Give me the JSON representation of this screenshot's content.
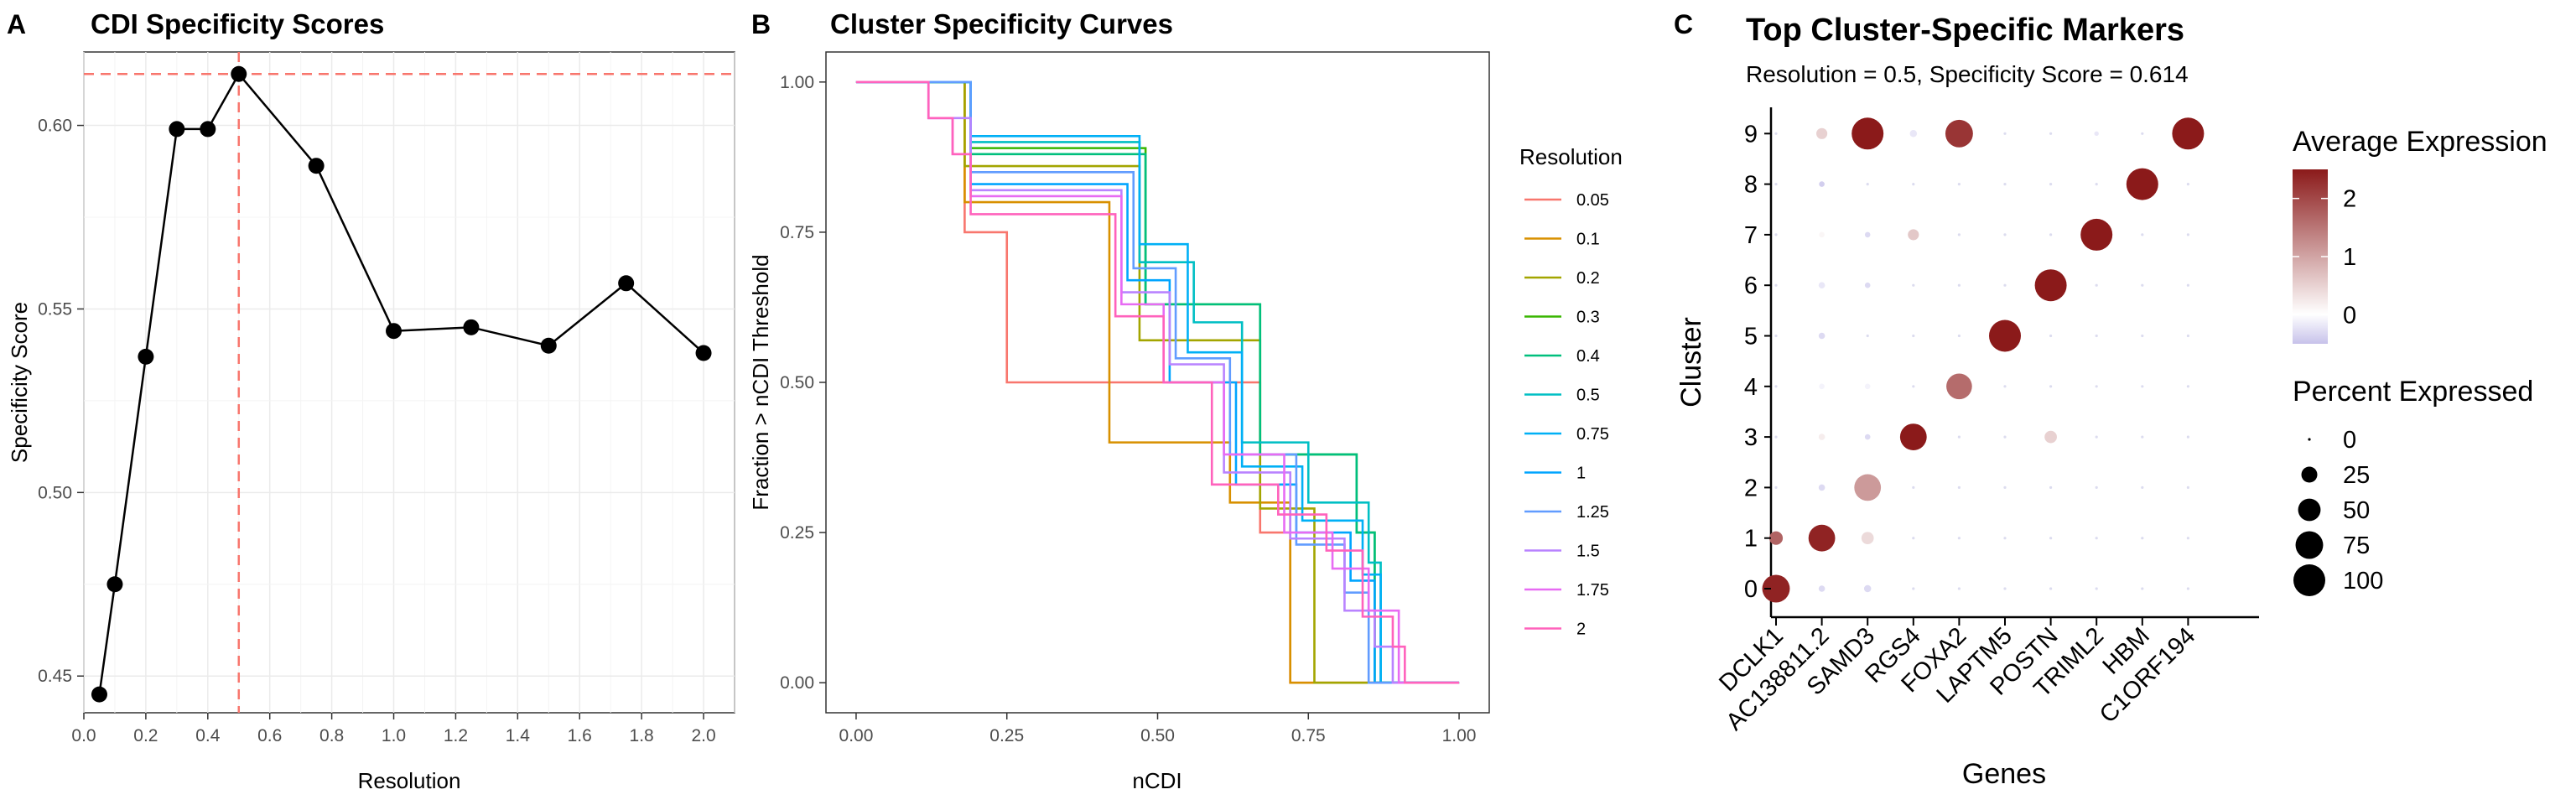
{
  "chart_data": [
    {
      "panel": "A",
      "type": "line",
      "title": "CDI Specificity Scores",
      "xlabel": "Resolution",
      "ylabel": "Specificity Score",
      "xlim": [
        -0.0,
        2.1
      ],
      "ylim": [
        0.44,
        0.62
      ],
      "xticks": [
        "0.0",
        "0.2",
        "0.4",
        "0.6",
        "0.8",
        "1.0",
        "1.2",
        "1.4",
        "1.6",
        "1.8",
        "2.0"
      ],
      "yticks": [
        "0.45",
        "0.50",
        "0.55",
        "0.60"
      ],
      "grid": true,
      "reference_lines": {
        "vertical": 0.5,
        "horizontal": 0.614,
        "color": "#f8766d",
        "style": "dashed"
      },
      "x": [
        0.05,
        0.1,
        0.2,
        0.3,
        0.4,
        0.5,
        0.75,
        1.0,
        1.25,
        1.5,
        1.75,
        2.0
      ],
      "y": [
        0.445,
        0.475,
        0.537,
        0.599,
        0.599,
        0.614,
        0.589,
        0.544,
        0.545,
        0.54,
        0.557,
        0.538
      ]
    },
    {
      "panel": "B",
      "type": "line",
      "title": "Cluster Specificity Curves",
      "xlabel": "nCDI",
      "ylabel": "Fraction > nCDI Threshold",
      "xlim": [
        -0.05,
        1.05
      ],
      "ylim": [
        -0.05,
        1.05
      ],
      "xticks": [
        "0.00",
        "0.25",
        "0.50",
        "0.75",
        "1.00"
      ],
      "yticks": [
        "0.00",
        "0.25",
        "0.50",
        "0.75",
        "1.00"
      ],
      "grid": false,
      "legend_title": "Resolution",
      "legend_position": "right",
      "series": [
        {
          "name": "0.05",
          "color": "#f8766d",
          "x": [
            0,
            0.13,
            0.18,
            0.25,
            0.65,
            0.67,
            0.69,
            0.72,
            1.0
          ],
          "y": [
            1,
            1,
            0.75,
            0.5,
            0.5,
            0.25,
            0.25,
            0,
            0
          ]
        },
        {
          "name": "0.1",
          "color": "#d89000",
          "x": [
            0,
            0.16,
            0.18,
            0.28,
            0.42,
            0.55,
            0.62,
            0.69,
            0.72,
            1.0
          ],
          "y": [
            1,
            1,
            0.8,
            0.8,
            0.4,
            0.4,
            0.3,
            0.3,
            0,
            0
          ]
        },
        {
          "name": "0.2",
          "color": "#a3a500",
          "x": [
            0,
            0.15,
            0.18,
            0.42,
            0.47,
            0.57,
            0.67,
            0.75,
            0.76,
            1.0
          ],
          "y": [
            1,
            1,
            0.86,
            0.86,
            0.57,
            0.57,
            0.29,
            0.29,
            0,
            0
          ]
        },
        {
          "name": "0.3",
          "color": "#39b600",
          "x": [
            0,
            0.16,
            0.19,
            0.45,
            0.48,
            0.6,
            0.67,
            0.78,
            0.83,
            0.86,
            1.0
          ],
          "y": [
            1,
            1,
            0.89,
            0.89,
            0.63,
            0.63,
            0.38,
            0.38,
            0.25,
            0,
            0
          ]
        },
        {
          "name": "0.4",
          "color": "#00bf7d",
          "x": [
            0,
            0.16,
            0.19,
            0.43,
            0.48,
            0.58,
            0.67,
            0.75,
            0.83,
            0.86,
            1.0
          ],
          "y": [
            1,
            1,
            0.88,
            0.88,
            0.63,
            0.63,
            0.38,
            0.38,
            0.25,
            0,
            0
          ]
        },
        {
          "name": "0.5",
          "color": "#00bfc4",
          "x": [
            0,
            0.17,
            0.19,
            0.43,
            0.47,
            0.56,
            0.64,
            0.75,
            0.85,
            0.87,
            1.0
          ],
          "y": [
            1,
            1,
            0.9,
            0.9,
            0.7,
            0.6,
            0.4,
            0.3,
            0.2,
            0,
            0
          ]
        },
        {
          "name": "0.75",
          "color": "#00b0f6",
          "x": [
            0,
            0.17,
            0.19,
            0.38,
            0.47,
            0.55,
            0.64,
            0.74,
            0.84,
            0.87,
            1.0
          ],
          "y": [
            1,
            1,
            0.91,
            0.91,
            0.73,
            0.55,
            0.36,
            0.27,
            0.18,
            0,
            0
          ]
        },
        {
          "name": "1",
          "color": "#00a5ff",
          "x": [
            0,
            0.16,
            0.19,
            0.37,
            0.45,
            0.52,
            0.63,
            0.73,
            0.82,
            0.86,
            1.0
          ],
          "y": [
            1,
            1,
            0.83,
            0.83,
            0.67,
            0.5,
            0.33,
            0.25,
            0.17,
            0,
            0
          ]
        },
        {
          "name": "1.25",
          "color": "#619cff",
          "x": [
            0,
            0.16,
            0.19,
            0.38,
            0.46,
            0.53,
            0.62,
            0.73,
            0.81,
            0.85,
            1.0
          ],
          "y": [
            1,
            1,
            0.85,
            0.85,
            0.69,
            0.54,
            0.38,
            0.23,
            0.15,
            0,
            0
          ]
        },
        {
          "name": "1.5",
          "color": "#b983ff",
          "x": [
            0,
            0.12,
            0.19,
            0.38,
            0.44,
            0.52,
            0.61,
            0.72,
            0.81,
            0.86,
            0.89,
            1.0
          ],
          "y": [
            1,
            0.94,
            0.82,
            0.82,
            0.65,
            0.53,
            0.35,
            0.24,
            0.12,
            0.06,
            0,
            0
          ]
        },
        {
          "name": "1.75",
          "color": "#e76bf3",
          "x": [
            0,
            0.12,
            0.16,
            0.19,
            0.36,
            0.44,
            0.51,
            0.61,
            0.71,
            0.79,
            0.85,
            0.9,
            1.0
          ],
          "y": [
            1,
            0.94,
            0.88,
            0.81,
            0.81,
            0.63,
            0.5,
            0.38,
            0.25,
            0.19,
            0.12,
            0,
            0
          ]
        },
        {
          "name": "2",
          "color": "#ff62bc",
          "x": [
            0,
            0.12,
            0.16,
            0.19,
            0.35,
            0.43,
            0.51,
            0.59,
            0.7,
            0.78,
            0.84,
            0.89,
            0.91,
            1.0
          ],
          "y": [
            1,
            0.94,
            0.88,
            0.78,
            0.78,
            0.61,
            0.5,
            0.33,
            0.28,
            0.22,
            0.11,
            0.06,
            0,
            0
          ]
        }
      ]
    },
    {
      "panel": "C",
      "type": "scatter",
      "title": "Top Cluster-Specific Markers",
      "subtitle": "Resolution = 0.5, Specificity Score = 0.614",
      "xlabel": "Genes",
      "ylabel": "Cluster",
      "genes": [
        "DCLK1",
        "AC138811.2",
        "SAMD3",
        "RGS4",
        "FOXA2",
        "LAPTM5",
        "POSTN",
        "TRIML2",
        "HBM",
        "C1ORF194"
      ],
      "clusters": [
        "0",
        "1",
        "2",
        "3",
        "4",
        "5",
        "6",
        "7",
        "8",
        "9"
      ],
      "color_legend_title": "Average Expression",
      "color_scale": {
        "low": "#c7c2ea",
        "mid": "#ffffff",
        "high": "#8b1a1a",
        "min": -0.5,
        "max": 2.5
      },
      "color_ticks": [
        "2",
        "1",
        "0"
      ],
      "size_legend_title": "Percent Expressed",
      "size_ticks": [
        "0",
        "25",
        "50",
        "75",
        "100"
      ],
      "points": [
        {
          "gene": 0,
          "cluster": 0,
          "pct": 75,
          "exp": 2.4
        },
        {
          "gene": 0,
          "cluster": 1,
          "pct": 18,
          "exp": 1.7
        },
        {
          "gene": 1,
          "cluster": 1,
          "pct": 70,
          "exp": 2.4
        },
        {
          "gene": 1,
          "cluster": 9,
          "pct": 12,
          "exp": 0.5
        },
        {
          "gene": 1,
          "cluster": 8,
          "pct": 3,
          "exp": -0.4
        },
        {
          "gene": 1,
          "cluster": 2,
          "pct": 4,
          "exp": -0.3
        },
        {
          "gene": 1,
          "cluster": 0,
          "pct": 4,
          "exp": -0.3
        },
        {
          "gene": 1,
          "cluster": 3,
          "pct": 4,
          "exp": 0.2
        },
        {
          "gene": 1,
          "cluster": 4,
          "pct": 3,
          "exp": -0.1
        },
        {
          "gene": 1,
          "cluster": 5,
          "pct": 4,
          "exp": -0.3
        },
        {
          "gene": 1,
          "cluster": 6,
          "pct": 4,
          "exp": -0.2
        },
        {
          "gene": 1,
          "cluster": 7,
          "pct": 3,
          "exp": 0.1
        },
        {
          "gene": 2,
          "cluster": 9,
          "pct": 100,
          "exp": 2.5
        },
        {
          "gene": 2,
          "cluster": 2,
          "pct": 70,
          "exp": 1.1
        },
        {
          "gene": 2,
          "cluster": 1,
          "pct": 15,
          "exp": 0.4
        },
        {
          "gene": 2,
          "cluster": 0,
          "pct": 5,
          "exp": -0.3
        },
        {
          "gene": 2,
          "cluster": 3,
          "pct": 3,
          "exp": -0.3
        },
        {
          "gene": 2,
          "cluster": 4,
          "pct": 3,
          "exp": -0.1
        },
        {
          "gene": 2,
          "cluster": 6,
          "pct": 3,
          "exp": -0.3
        },
        {
          "gene": 2,
          "cluster": 7,
          "pct": 3,
          "exp": -0.3
        },
        {
          "gene": 3,
          "cluster": 3,
          "pct": 70,
          "exp": 2.5
        },
        {
          "gene": 3,
          "cluster": 7,
          "pct": 12,
          "exp": 0.6
        },
        {
          "gene": 3,
          "cluster": 9,
          "pct": 5,
          "exp": -0.2
        },
        {
          "gene": 4,
          "cluster": 9,
          "pct": 75,
          "exp": 2.2
        },
        {
          "gene": 4,
          "cluster": 4,
          "pct": 65,
          "exp": 1.6
        },
        {
          "gene": 6,
          "cluster": 6,
          "pct": 100,
          "exp": 2.5
        },
        {
          "gene": 6,
          "cluster": 3,
          "pct": 15,
          "exp": 0.5
        },
        {
          "gene": 5,
          "cluster": 5,
          "pct": 100,
          "exp": 2.5
        },
        {
          "gene": 7,
          "cluster": 7,
          "pct": 100,
          "exp": 2.5
        },
        {
          "gene": 7,
          "cluster": 9,
          "pct": 2,
          "exp": -0.2
        },
        {
          "gene": 8,
          "cluster": 8,
          "pct": 100,
          "exp": 2.5
        },
        {
          "gene": 9,
          "cluster": 9,
          "pct": 100,
          "exp": 2.5
        }
      ]
    }
  ],
  "panel_labels": {
    "a": "A",
    "b": "B",
    "c": "C"
  }
}
